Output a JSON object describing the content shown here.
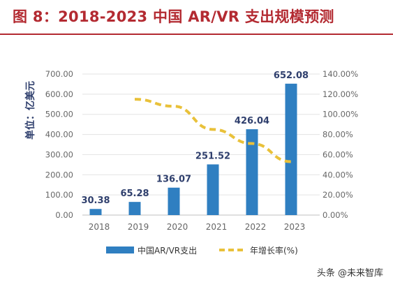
{
  "figure_title": "图 8：2018-2023 中国 AR/VR 支出规模预测",
  "watermark": "头条 @未来智库",
  "colors": {
    "title": "#b32a31",
    "bar": "#2f7fc1",
    "line": "#e9c13a",
    "axis_text": "#666666",
    "label_text": "#2f3f6d"
  },
  "chart_data": {
    "type": "bar",
    "categories": [
      "2018",
      "2019",
      "2020",
      "2021",
      "2022",
      "2023"
    ],
    "ylabel": "单位：亿美元",
    "ylim": [
      0,
      700
    ],
    "y_ticks": [
      "0.00",
      "100.00",
      "200.00",
      "300.00",
      "400.00",
      "500.00",
      "600.00",
      "700.00"
    ],
    "y2lim": [
      0,
      140
    ],
    "y2_ticks": [
      "0.00%",
      "20.00%",
      "40.00%",
      "60.00%",
      "80.00%",
      "100.00%",
      "120.00%",
      "140.00%"
    ],
    "grid": true,
    "legend_position": "bottom",
    "series": [
      {
        "name": "中国AR/VR支出",
        "type": "bar",
        "axis": "left",
        "values": [
          30.38,
          65.28,
          136.07,
          251.52,
          426.04,
          652.08
        ],
        "labels": [
          "30.38",
          "65.28",
          "136.07",
          "251.52",
          "426.04",
          "652.08"
        ]
      },
      {
        "name": "年增长率(%)",
        "type": "line",
        "style": "dashed",
        "axis": "right",
        "values": [
          null,
          115,
          108,
          85,
          71,
          53
        ]
      }
    ]
  }
}
